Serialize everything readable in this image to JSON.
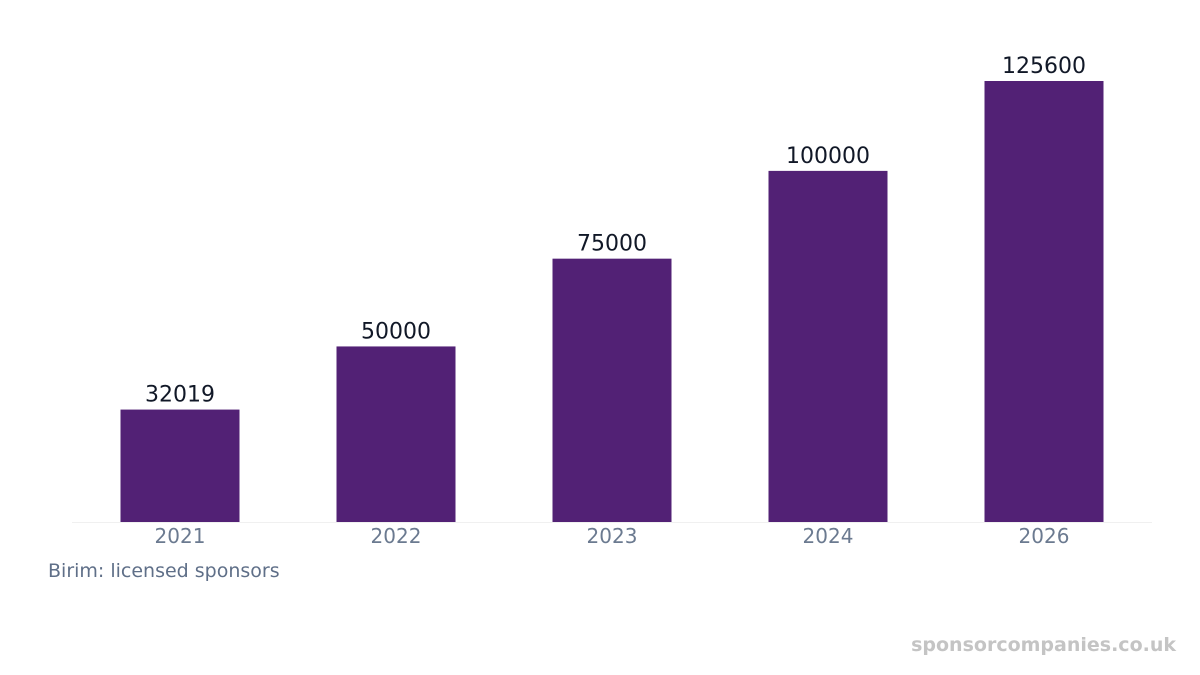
{
  "chart_data": {
    "type": "bar",
    "title": "",
    "xlabel": "",
    "ylabel": "",
    "categories": [
      "2021",
      "2022",
      "2023",
      "2024",
      "2026"
    ],
    "values": [
      32019,
      50000,
      75000,
      100000,
      125600
    ],
    "value_labels": [
      "32019",
      "50000",
      "75000",
      "100000",
      "125600"
    ],
    "ylim": [
      0,
      125600
    ],
    "grid": false,
    "legend": "none",
    "colors": {
      "bar": "#522175",
      "value_label": "#111827",
      "tick_label": "#6b7a90",
      "baseline": "#f0f0f0"
    }
  },
  "unit_note": "Birim: licensed sponsors",
  "watermark": "sponsorcompanies.co.uk"
}
